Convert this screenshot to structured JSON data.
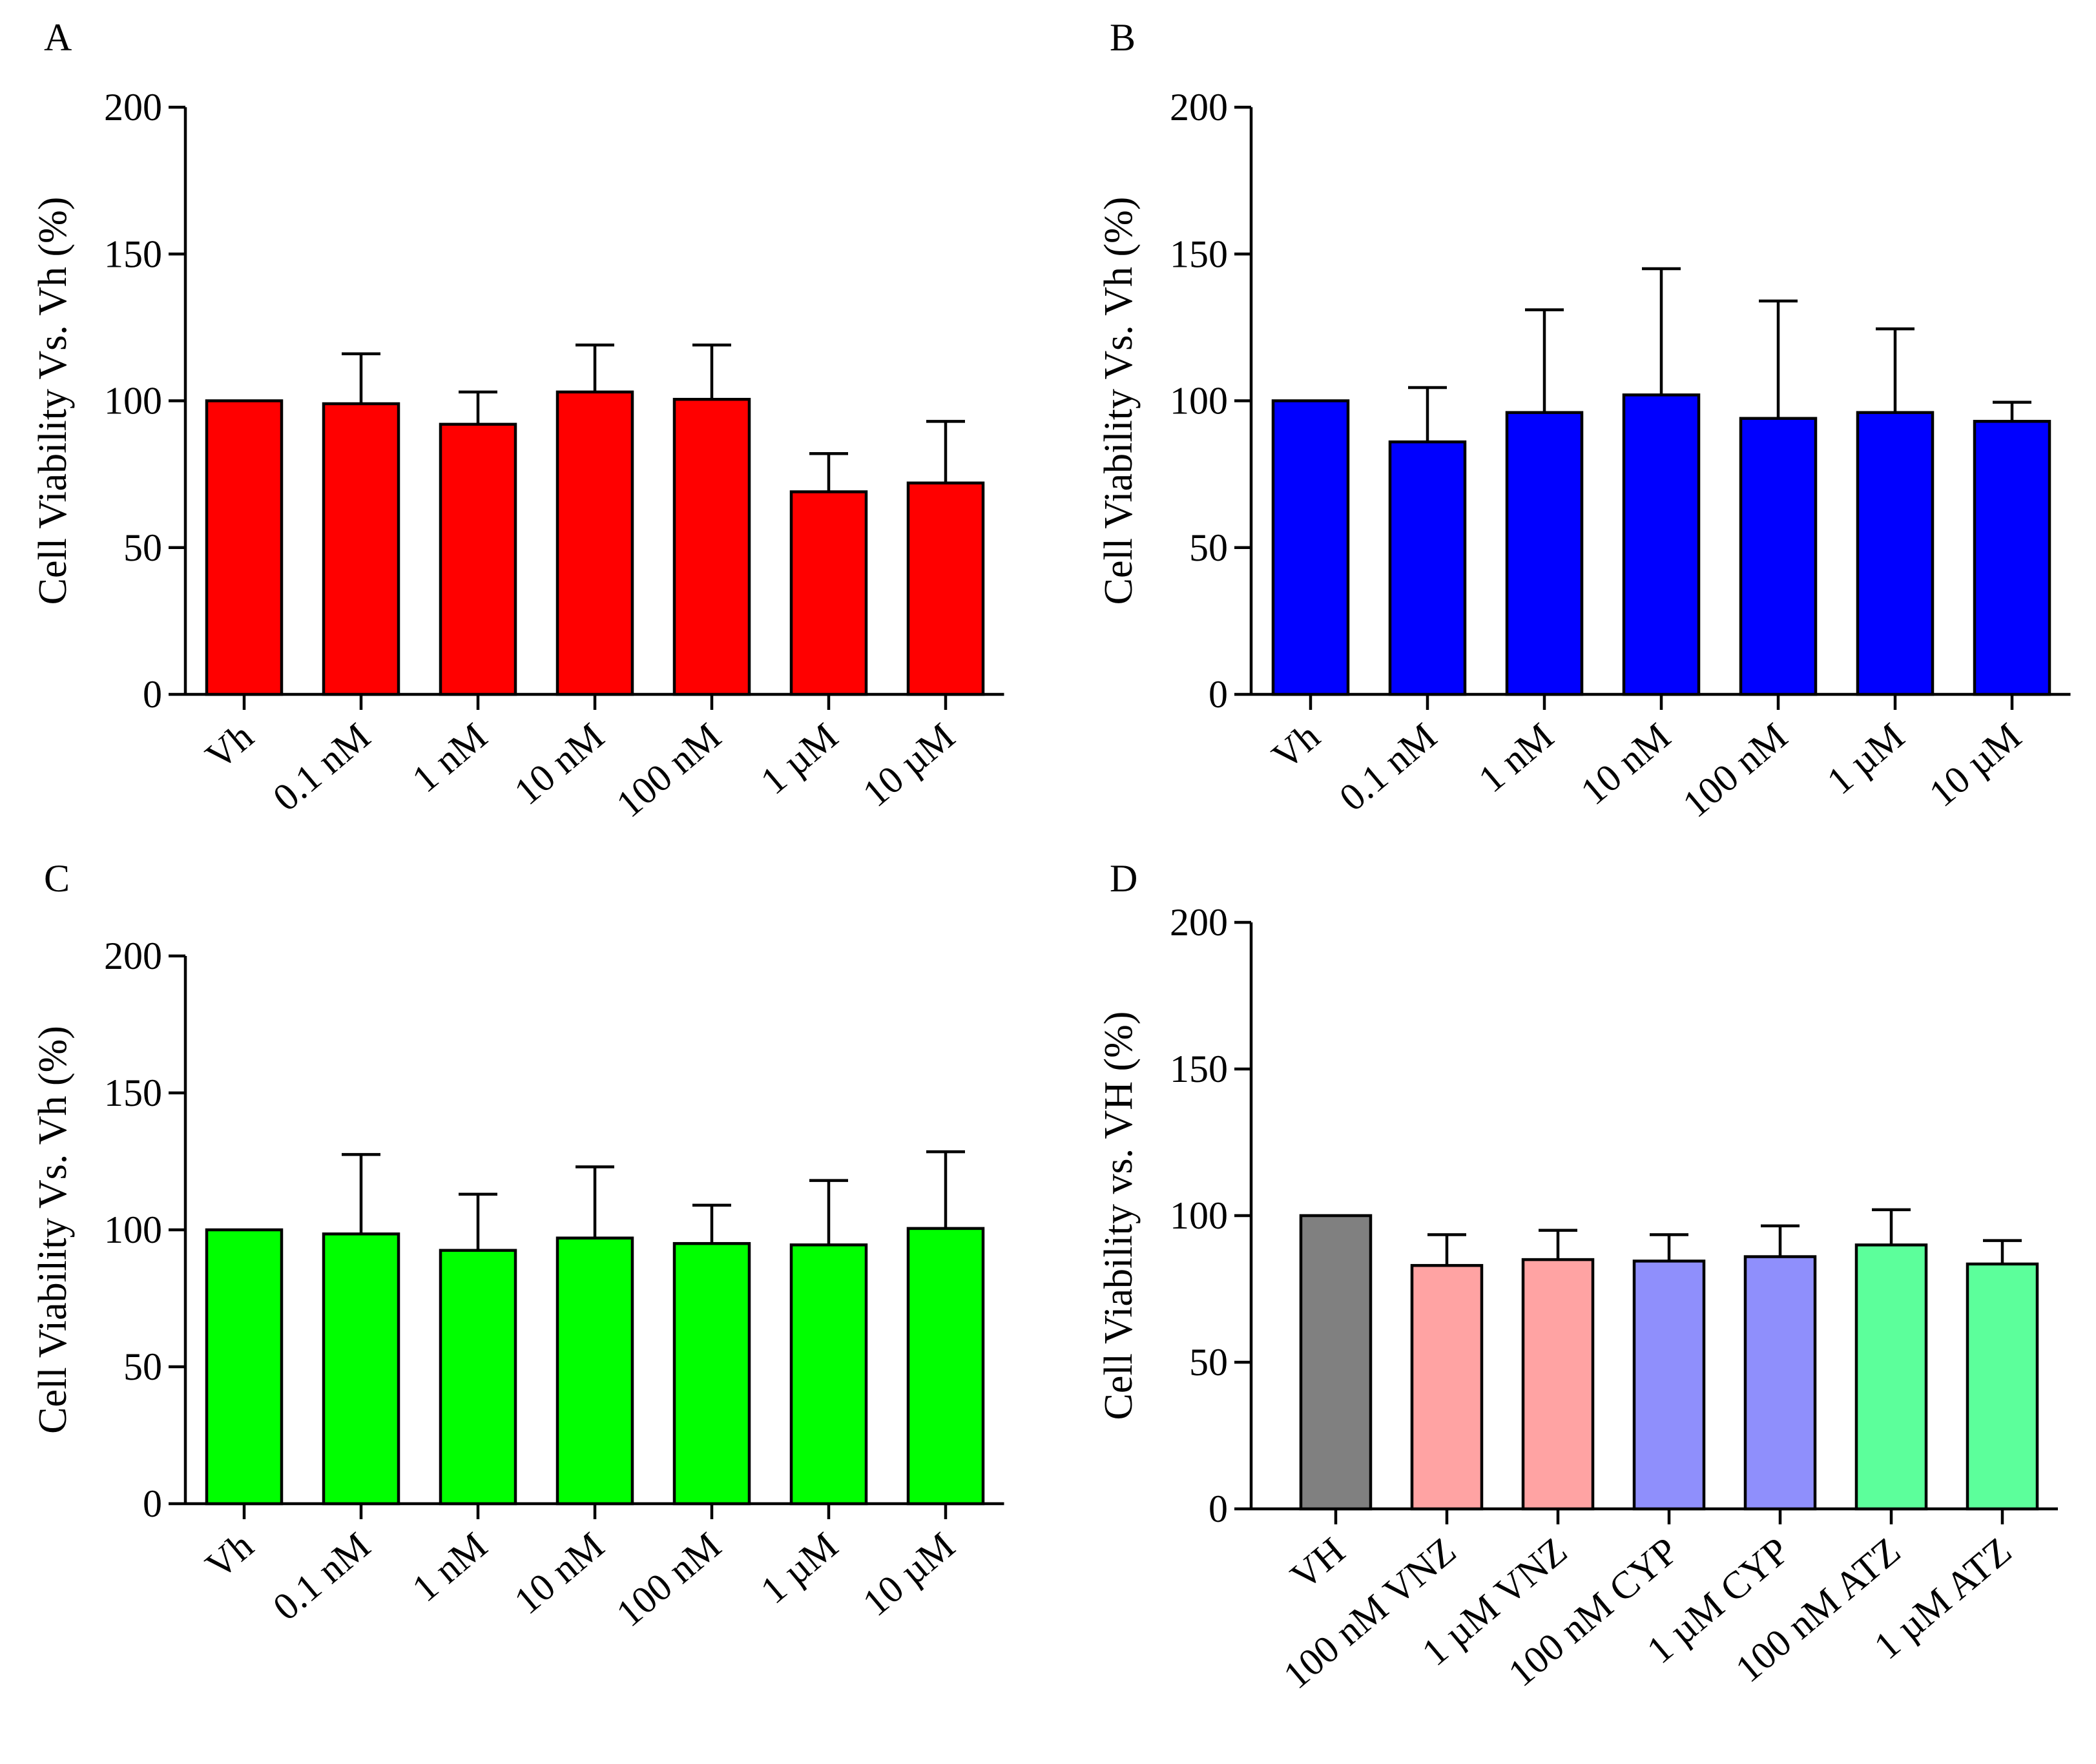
{
  "figure": {
    "colors": {
      "panel_a": "#ff0000",
      "panel_b": "#0000ff",
      "panel_c": "#00ff00",
      "vh": "#808080",
      "vnz": "#ffa3a3",
      "cyp": "#8f8ffc",
      "atz": "#5cff9b"
    }
  },
  "chart_data": [
    {
      "panel": "A",
      "type": "bar",
      "ylabel": "Cell Viability Vs. Vh (%)",
      "ylim": [
        0,
        200
      ],
      "yticks": [
        "0",
        "50",
        "100",
        "150",
        "200"
      ],
      "categories": [
        "Vh",
        "0.1 nM",
        "1 nM",
        "10 nM",
        "100 nM",
        "1 µM",
        "10 µM"
      ],
      "values": [
        100,
        99,
        92,
        103,
        100.5,
        69,
        72
      ],
      "errors": [
        0,
        17,
        11,
        16,
        18.5,
        13,
        21
      ],
      "colors": [
        "#ff0000",
        "#ff0000",
        "#ff0000",
        "#ff0000",
        "#ff0000",
        "#ff0000",
        "#ff0000"
      ]
    },
    {
      "panel": "B",
      "type": "bar",
      "ylabel": "Cell Viability Vs. Vh (%)",
      "ylim": [
        0,
        200
      ],
      "yticks": [
        "0",
        "50",
        "100",
        "150",
        "200"
      ],
      "categories": [
        "Vh",
        "0.1 nM",
        "1 nM",
        "10 nM",
        "100 nM",
        "1 µM",
        "10 µM"
      ],
      "values": [
        100,
        86,
        96,
        102,
        94,
        96,
        93
      ],
      "errors": [
        0,
        18.5,
        35,
        43,
        40,
        28.5,
        6.5
      ],
      "colors": [
        "#0000ff",
        "#0000ff",
        "#0000ff",
        "#0000ff",
        "#0000ff",
        "#0000ff",
        "#0000ff"
      ]
    },
    {
      "panel": "C",
      "type": "bar",
      "ylabel": "Cell Viability Vs. Vh (%)",
      "ylim": [
        0,
        200
      ],
      "yticks": [
        "0",
        "50",
        "100",
        "150",
        "200"
      ],
      "categories": [
        "Vh",
        "0.1 nM",
        "1 nM",
        "10 nM",
        "100 nM",
        "1 µM",
        "10 µM"
      ],
      "values": [
        100,
        98.5,
        92.5,
        97,
        95,
        94.5,
        100.5
      ],
      "errors": [
        0,
        29,
        20.5,
        26,
        14,
        23.5,
        28
      ],
      "colors": [
        "#00ff00",
        "#00ff00",
        "#00ff00",
        "#00ff00",
        "#00ff00",
        "#00ff00",
        "#00ff00"
      ]
    },
    {
      "panel": "D",
      "type": "bar",
      "ylabel": "Cell Viability vs. VH (%)",
      "ylim": [
        0,
        200
      ],
      "yticks": [
        "0",
        "50",
        "100",
        "150",
        "200"
      ],
      "categories": [
        "VH",
        "100 nM VNZ",
        "1 µM VNZ",
        "100 nM CYP",
        "1 µM CYP",
        "100 nM ATZ",
        "1 µM ATZ"
      ],
      "values": [
        100,
        83,
        85,
        84.5,
        86,
        90,
        83.5
      ],
      "errors": [
        0,
        10.5,
        10,
        9,
        10.5,
        12,
        8
      ],
      "colors": [
        "#808080",
        "#ffa3a3",
        "#ffa3a3",
        "#8f8ffc",
        "#8f8ffc",
        "#5cff9b",
        "#5cff9b"
      ]
    }
  ]
}
